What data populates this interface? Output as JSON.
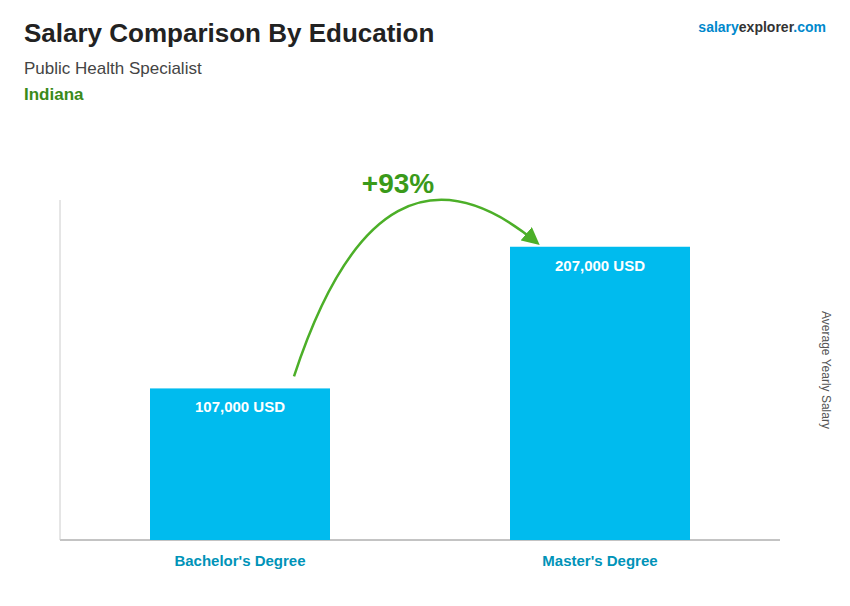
{
  "chart_data": {
    "type": "bar",
    "title": "Salary Comparison By Education",
    "subtitle": "Public Health Specialist",
    "ylabel": "Average Yearly Salary",
    "annotations": [
      "Indiana",
      "+93%",
      "salary",
      "explorer",
      ".com"
    ],
    "categories": [
      "Bachelor's Degree",
      "Master's Degree"
    ],
    "values": [
      107000,
      207000
    ],
    "value_labels": [
      "107,000 USD",
      "207,000 USD"
    ],
    "data_labels": true,
    "color": "#00BBEE",
    "ylim": [
      0,
      240000
    ],
    "tick_labels": "x"
  }
}
